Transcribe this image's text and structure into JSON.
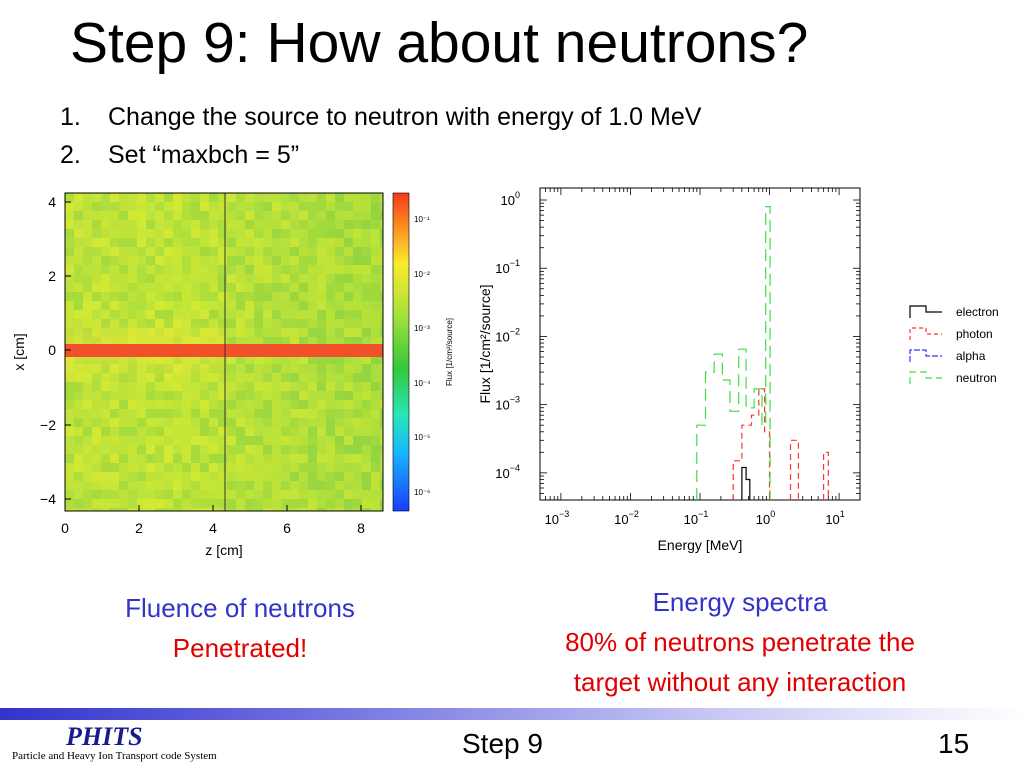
{
  "title": "Step 9: How about neutrons?",
  "bullets": [
    {
      "num": "1.",
      "text": "Change the source to neutron with energy of 1.0 MeV"
    },
    {
      "num": "2.",
      "text": "Set “maxbch = 5”"
    }
  ],
  "fluence_plot": {
    "xlabel": "z [cm]",
    "ylabel": "x [cm]",
    "x_ticks": [
      "0",
      "2",
      "4",
      "6",
      "8"
    ],
    "y_ticks": [
      "4",
      "2",
      "0",
      "−2",
      "−4"
    ],
    "colorbar_label": "Flux [1/cm²/source]",
    "colorbar_ticks": [
      "10⁻¹",
      "10⁻²",
      "10⁻³",
      "10⁻⁴",
      "10⁻⁵",
      "10⁻⁶"
    ]
  },
  "chart_data": {
    "type": "line",
    "xlabel": "Energy [MeV]",
    "ylabel": "Flux  [1/cm²/source]",
    "x_scale": "log",
    "y_scale": "log",
    "xlim": [
      0.0005,
      20
    ],
    "ylim": [
      4e-05,
      1.5
    ],
    "x_ticks": [
      {
        "v": 0.001,
        "b": "10",
        "e": "−3"
      },
      {
        "v": 0.01,
        "b": "10",
        "e": "−2"
      },
      {
        "v": 0.1,
        "b": "10",
        "e": "−1"
      },
      {
        "v": 1,
        "b": "10",
        "e": "0"
      },
      {
        "v": 10,
        "b": "10",
        "e": "1"
      }
    ],
    "y_ticks": [
      {
        "v": 1,
        "b": "10",
        "e": "0"
      },
      {
        "v": 0.1,
        "b": "10",
        "e": "−1"
      },
      {
        "v": 0.01,
        "b": "10",
        "e": "−2"
      },
      {
        "v": 0.001,
        "b": "10",
        "e": "−3"
      },
      {
        "v": 0.0001,
        "b": "10",
        "e": "−4"
      }
    ],
    "legend_position": "right",
    "series": [
      {
        "name": "electron",
        "color": "#000000",
        "dash": "none",
        "bins": [
          [
            0.4,
            0.46,
            0.00012
          ],
          [
            0.46,
            0.52,
            8e-05
          ]
        ]
      },
      {
        "name": "photon",
        "color": "#ff3333",
        "dash": "6,4",
        "bins": [
          [
            0.3,
            0.4,
            0.00015
          ],
          [
            0.4,
            0.55,
            0.0005
          ],
          [
            0.55,
            0.7,
            0.0007
          ],
          [
            0.7,
            0.85,
            0.0017
          ],
          [
            0.85,
            1.0,
            0.0004
          ],
          [
            2.0,
            2.6,
            0.0003
          ],
          [
            6.0,
            7.0,
            0.0002
          ]
        ]
      },
      {
        "name": "alpha",
        "color": "#3333ff",
        "dash": "8,3",
        "bins": []
      },
      {
        "name": "neutron",
        "color": "#44dd44",
        "dash": "12,6",
        "bins": [
          [
            0.09,
            0.12,
            0.0005
          ],
          [
            0.12,
            0.16,
            0.003
          ],
          [
            0.16,
            0.21,
            0.0055
          ],
          [
            0.21,
            0.27,
            0.0023
          ],
          [
            0.27,
            0.36,
            0.0008
          ],
          [
            0.36,
            0.46,
            0.0065
          ],
          [
            0.46,
            0.6,
            0.0009
          ],
          [
            0.6,
            0.78,
            0.0017
          ],
          [
            0.78,
            0.88,
            0.0005
          ],
          [
            0.88,
            1.02,
            0.8
          ]
        ]
      }
    ]
  },
  "caption_left": {
    "line1": "Fluence of neutrons",
    "line2": "Penetrated!"
  },
  "caption_right": {
    "line1": "Energy spectra",
    "line2": "80% of neutrons penetrate the",
    "line3": "target without any interaction"
  },
  "footer": {
    "logo": "PHITS",
    "logo_sub": "Particle and Heavy Ion Transport code System",
    "center": "Step 9",
    "page": "15"
  }
}
